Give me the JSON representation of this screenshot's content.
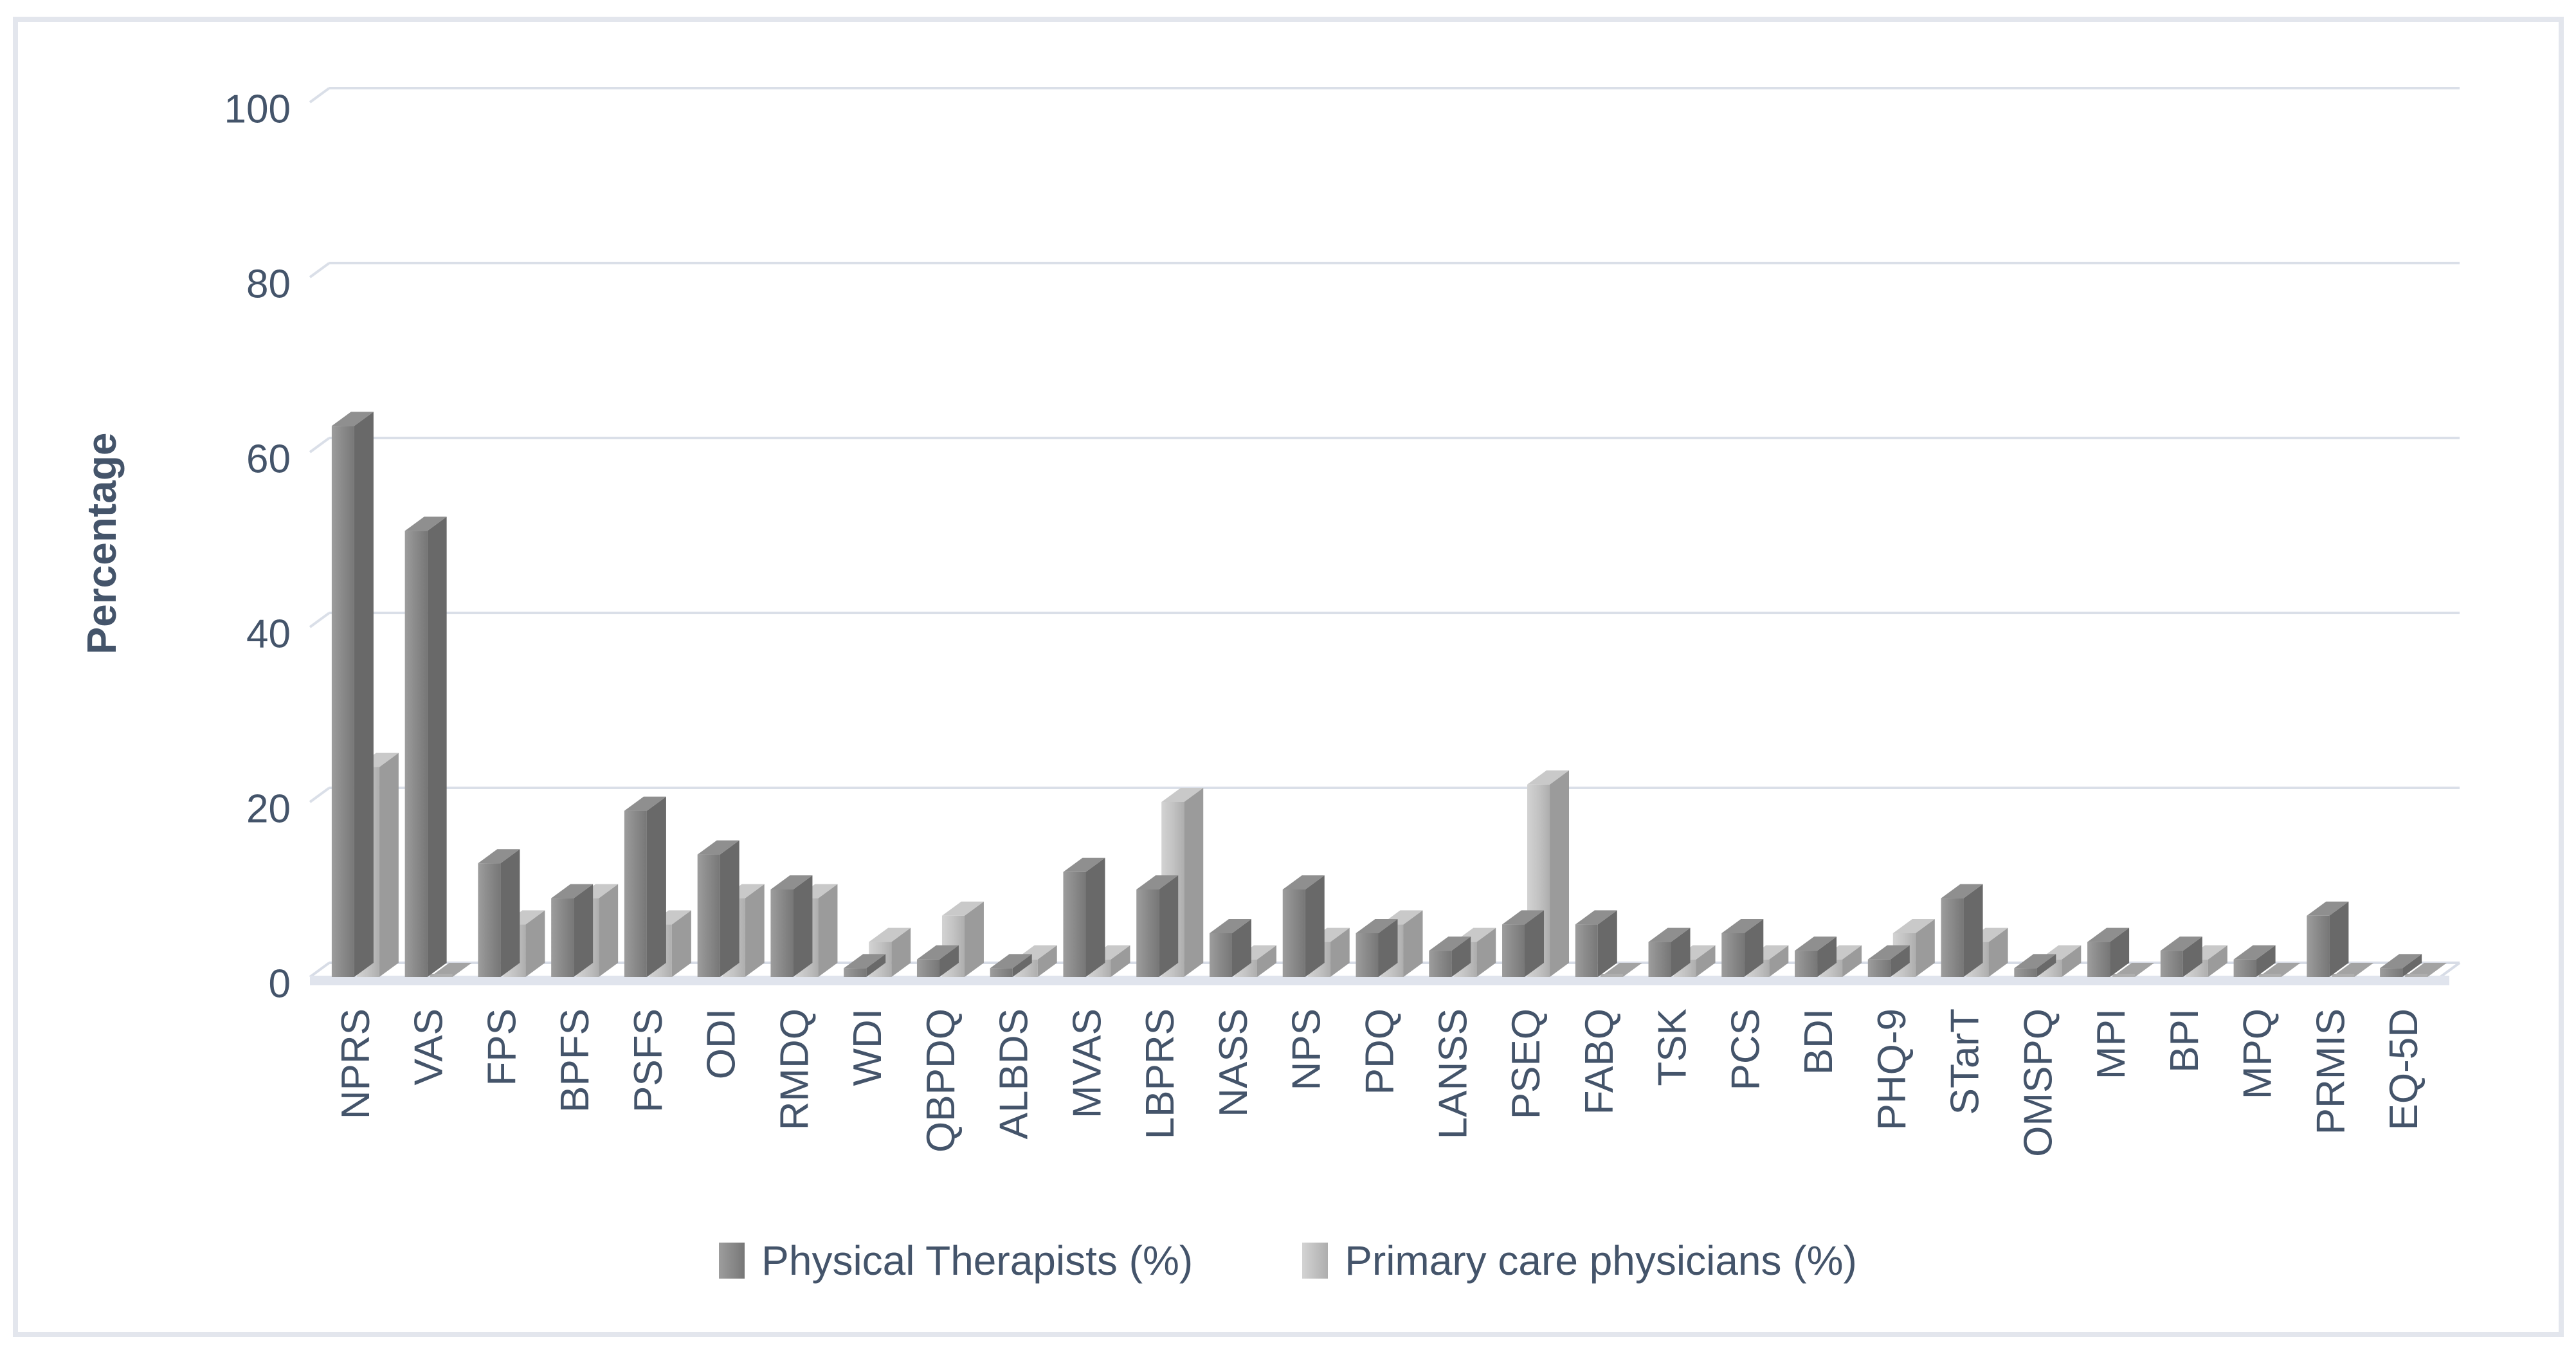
{
  "chart_data": {
    "type": "bar",
    "variant": "3d-clustered-column",
    "title": "",
    "xlabel": "",
    "ylabel": "Percentage",
    "ylim": [
      0,
      100
    ],
    "yticks": [
      0,
      20,
      40,
      60,
      80,
      100
    ],
    "grid": "horizontal-back-wall",
    "legend_position": "bottom-center",
    "categories": [
      "NPRS",
      "VAS",
      "FPS",
      "BPFS",
      "PSFS",
      "ODI",
      "RMDQ",
      "WDI",
      "QBPDQ",
      "ALBDS",
      "MVAS",
      "LBPRS",
      "NASS",
      "NPS",
      "PDQ",
      "LANSS",
      "PSEQ",
      "FABQ",
      "TSK",
      "PCS",
      "BDI",
      "PHQ-9",
      "STarT",
      "OMSPQ",
      "MPI",
      "BPI",
      "MPQ",
      "PRMIS",
      "EQ-5D"
    ],
    "series": [
      {
        "name": "Physical Therapists (%)",
        "key": "physical-therapists",
        "values": [
          63,
          51,
          13,
          9,
          19,
          14,
          10,
          1,
          2,
          1,
          12,
          10,
          5,
          10,
          5,
          3,
          6,
          6,
          4,
          5,
          3,
          2,
          9,
          1,
          4,
          3,
          2,
          7,
          1
        ]
      },
      {
        "name": "Primary care physicians (%)",
        "key": "primary-care-physicians",
        "values": [
          24,
          0,
          6,
          9,
          6,
          9,
          9,
          4,
          7,
          2,
          2,
          20,
          2,
          4,
          6,
          4,
          22,
          0,
          2,
          2,
          2,
          5,
          4,
          2,
          0,
          2,
          0,
          0,
          0
        ]
      }
    ]
  },
  "colors": {
    "text": "#44546a",
    "gridline": "#dadfe8",
    "floor_band": "#e0e4ed",
    "floor_back_line": "#d7dce6",
    "frame_border": "#e3e6ed",
    "series": [
      {
        "front_light": "#9d9d9d",
        "front_dark": "#777777",
        "top": "#8f8f8f",
        "side": "#696969"
      },
      {
        "front_light": "#d3d3d3",
        "front_dark": "#aeaeae",
        "top": "#c9c9c9",
        "side": "#9b9b9b"
      }
    ],
    "zero_wedge": "#a3a3a3"
  }
}
